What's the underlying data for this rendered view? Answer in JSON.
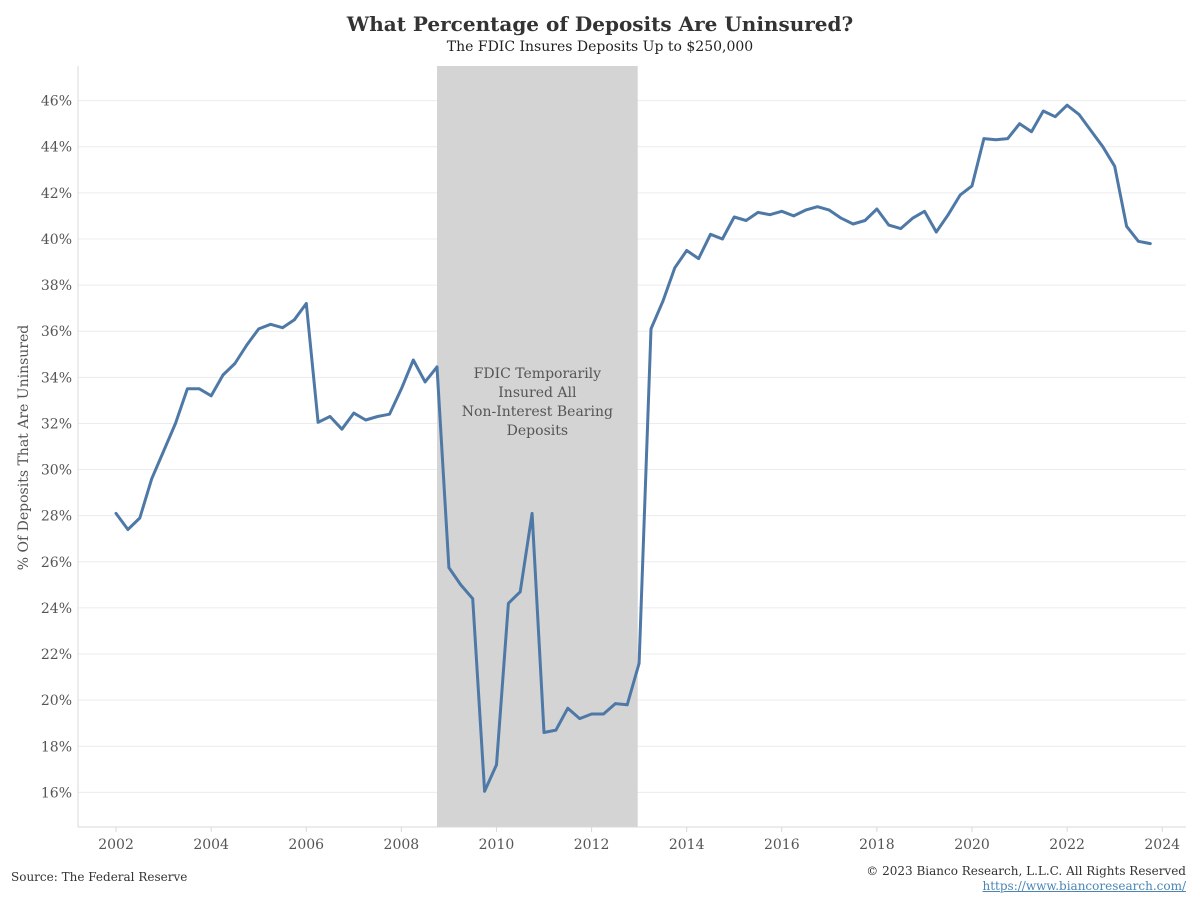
{
  "chart_data": {
    "type": "line",
    "title": "What Percentage of Deposits Are Uninsured?",
    "subtitle": "The FDIC Insures Deposits Up to $250,000",
    "ylabel": "% Of Deposits That Are Uninsured",
    "xlabel": "",
    "xlim": [
      2001.2,
      2024.5
    ],
    "ylim": [
      14.5,
      47.5
    ],
    "x_ticks": [
      2002,
      2004,
      2006,
      2008,
      2010,
      2012,
      2014,
      2016,
      2018,
      2020,
      2022,
      2024
    ],
    "x_tick_labels": [
      "2002",
      "2004",
      "2006",
      "2008",
      "2010",
      "2012",
      "2014",
      "2016",
      "2018",
      "2020",
      "2022",
      "2024"
    ],
    "y_ticks": [
      16,
      18,
      20,
      22,
      24,
      26,
      28,
      30,
      32,
      34,
      36,
      38,
      40,
      42,
      44,
      46
    ],
    "y_tick_labels": [
      "16%",
      "18%",
      "20%",
      "22%",
      "24%",
      "26%",
      "28%",
      "30%",
      "32%",
      "34%",
      "36%",
      "38%",
      "40%",
      "42%",
      "44%",
      "46%"
    ],
    "grid": true,
    "line_color": "#4e79a7",
    "shade_color": "#d4d4d4",
    "shaded_region": {
      "x_start": 2008.75,
      "x_end": 2012.97,
      "annotation": [
        "FDIC Temporarily",
        "Insured All",
        "Non-Interest Bearing",
        "Deposits"
      ]
    },
    "series": [
      {
        "values": [
          [
            2002.0,
            28.1
          ],
          [
            2002.25,
            27.4
          ],
          [
            2002.5,
            27.9
          ],
          [
            2002.75,
            29.6
          ],
          [
            2003.0,
            30.8
          ],
          [
            2003.25,
            32.0
          ],
          [
            2003.5,
            33.5
          ],
          [
            2003.75,
            33.5
          ],
          [
            2004.0,
            33.2
          ],
          [
            2004.25,
            34.1
          ],
          [
            2004.5,
            34.6
          ],
          [
            2004.75,
            35.4
          ],
          [
            2005.0,
            36.1
          ],
          [
            2005.25,
            36.3
          ],
          [
            2005.5,
            36.15
          ],
          [
            2005.75,
            36.5
          ],
          [
            2006.0,
            37.2
          ],
          [
            2006.25,
            32.05
          ],
          [
            2006.5,
            32.3
          ],
          [
            2006.75,
            31.75
          ],
          [
            2007.0,
            32.45
          ],
          [
            2007.25,
            32.15
          ],
          [
            2007.5,
            32.3
          ],
          [
            2007.75,
            32.4
          ],
          [
            2008.0,
            33.5
          ],
          [
            2008.25,
            34.75
          ],
          [
            2008.5,
            33.8
          ],
          [
            2008.75,
            34.45
          ],
          [
            2009.0,
            25.75
          ],
          [
            2009.25,
            25.0
          ],
          [
            2009.5,
            24.4
          ],
          [
            2009.75,
            16.05
          ],
          [
            2010.0,
            17.2
          ],
          [
            2010.25,
            24.2
          ],
          [
            2010.5,
            24.7
          ],
          [
            2010.75,
            28.1
          ],
          [
            2011.0,
            18.6
          ],
          [
            2011.25,
            18.7
          ],
          [
            2011.5,
            19.65
          ],
          [
            2011.75,
            19.2
          ],
          [
            2012.0,
            19.4
          ],
          [
            2012.25,
            19.4
          ],
          [
            2012.5,
            19.85
          ],
          [
            2012.75,
            19.8
          ],
          [
            2013.0,
            21.6
          ],
          [
            2013.25,
            36.1
          ],
          [
            2013.5,
            37.3
          ],
          [
            2013.75,
            38.75
          ],
          [
            2014.0,
            39.5
          ],
          [
            2014.25,
            39.15
          ],
          [
            2014.5,
            40.2
          ],
          [
            2014.75,
            40.0
          ],
          [
            2015.0,
            40.95
          ],
          [
            2015.25,
            40.8
          ],
          [
            2015.5,
            41.15
          ],
          [
            2015.75,
            41.05
          ],
          [
            2016.0,
            41.2
          ],
          [
            2016.25,
            41.0
          ],
          [
            2016.5,
            41.25
          ],
          [
            2016.75,
            41.4
          ],
          [
            2017.0,
            41.25
          ],
          [
            2017.25,
            40.9
          ],
          [
            2017.5,
            40.65
          ],
          [
            2017.75,
            40.8
          ],
          [
            2018.0,
            41.3
          ],
          [
            2018.25,
            40.6
          ],
          [
            2018.5,
            40.45
          ],
          [
            2018.75,
            40.9
          ],
          [
            2019.0,
            41.2
          ],
          [
            2019.25,
            40.3
          ],
          [
            2019.5,
            41.05
          ],
          [
            2019.75,
            41.9
          ],
          [
            2020.0,
            42.3
          ],
          [
            2020.25,
            44.35
          ],
          [
            2020.5,
            44.3
          ],
          [
            2020.75,
            44.35
          ],
          [
            2021.0,
            45.0
          ],
          [
            2021.25,
            44.65
          ],
          [
            2021.5,
            45.55
          ],
          [
            2021.75,
            45.3
          ],
          [
            2022.0,
            45.8
          ],
          [
            2022.25,
            45.4
          ],
          [
            2022.5,
            44.7
          ],
          [
            2022.75,
            44.0
          ],
          [
            2023.0,
            43.15
          ],
          [
            2023.25,
            40.55
          ],
          [
            2023.5,
            39.9
          ],
          [
            2023.75,
            39.8
          ]
        ]
      }
    ]
  },
  "footer": {
    "source": "Source: The Federal Reserve",
    "copyright": "© 2023 Bianco Research, L.L.C. All Rights Reserved",
    "url": "https://www.biancoresearch.com/"
  }
}
